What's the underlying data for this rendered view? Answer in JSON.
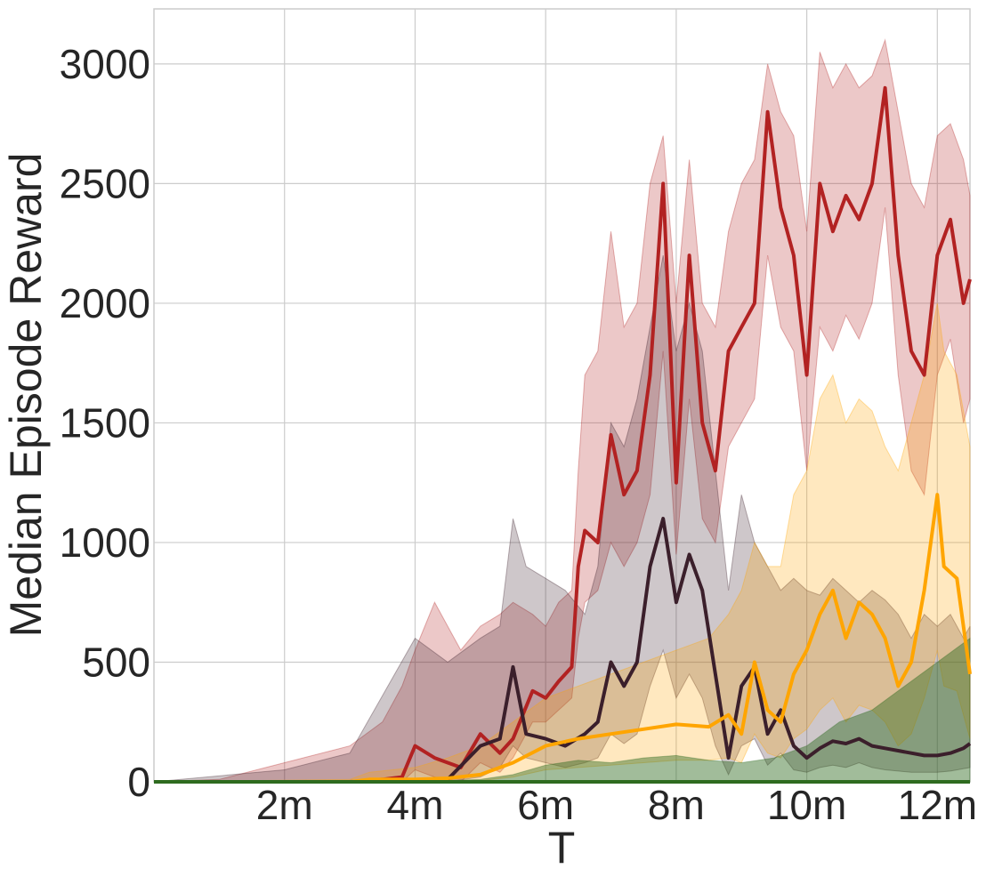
{
  "chart_data": {
    "type": "area",
    "title": "",
    "xlabel": "T",
    "ylabel": "Median Episode Reward",
    "xlim": [
      0,
      12.5
    ],
    "ylim": [
      0,
      3230
    ],
    "grid": true,
    "legend": "none",
    "x_ticks": [
      {
        "value": 2,
        "label": "2m"
      },
      {
        "value": 4,
        "label": "4m"
      },
      {
        "value": 6,
        "label": "6m"
      },
      {
        "value": 8,
        "label": "8m"
      },
      {
        "value": 10,
        "label": "10m"
      },
      {
        "value": 12,
        "label": "12m"
      }
    ],
    "y_ticks": [
      {
        "value": 0,
        "label": "0"
      },
      {
        "value": 500,
        "label": "500"
      },
      {
        "value": 1000,
        "label": "1000"
      },
      {
        "value": 1500,
        "label": "1500"
      },
      {
        "value": 2000,
        "label": "2000"
      },
      {
        "value": 2500,
        "label": "2500"
      },
      {
        "value": 3000,
        "label": "3000"
      }
    ],
    "series": [
      {
        "color": "#b22222",
        "x": [
          0,
          1,
          2,
          3,
          3.5,
          3.8,
          4.0,
          4.3,
          4.5,
          4.7,
          5.0,
          5.3,
          5.5,
          5.8,
          6.0,
          6.2,
          6.4,
          6.5,
          6.6,
          6.8,
          7.0,
          7.2,
          7.4,
          7.6,
          7.8,
          8.0,
          8.2,
          8.4,
          8.6,
          8.8,
          9.0,
          9.2,
          9.4,
          9.6,
          9.8,
          10.0,
          10.2,
          10.4,
          10.6,
          10.8,
          11.0,
          11.2,
          11.4,
          11.6,
          11.8,
          12.0,
          12.2,
          12.4,
          12.5
        ],
        "y": [
          0,
          0,
          0,
          0,
          10,
          20,
          150,
          100,
          80,
          60,
          200,
          120,
          180,
          380,
          350,
          420,
          480,
          900,
          1050,
          1000,
          1450,
          1200,
          1300,
          1700,
          2500,
          1250,
          2200,
          1500,
          1300,
          1800,
          1900,
          2000,
          2800,
          2400,
          2200,
          1700,
          2500,
          2300,
          2450,
          2350,
          2500,
          2900,
          2200,
          1800,
          1700,
          2200,
          2350,
          2000,
          2100
        ],
        "lower": [
          0,
          0,
          0,
          0,
          0,
          0,
          50,
          20,
          10,
          0,
          80,
          40,
          100,
          250,
          250,
          300,
          350,
          600,
          750,
          800,
          1000,
          900,
          1000,
          1200,
          1800,
          950,
          1600,
          1100,
          1000,
          1400,
          1500,
          1600,
          2200,
          1900,
          1800,
          1300,
          1900,
          1800,
          1950,
          1850,
          2000,
          2400,
          1700,
          1300,
          1200,
          1700,
          1850,
          1500,
          1600
        ],
        "upper": [
          0,
          10,
          80,
          150,
          250,
          400,
          550,
          750,
          650,
          550,
          650,
          700,
          750,
          700,
          650,
          750,
          800,
          1300,
          1700,
          1800,
          2300,
          1900,
          2000,
          2500,
          2700,
          2000,
          2600,
          2000,
          1900,
          2300,
          2500,
          2600,
          3000,
          2800,
          2700,
          2300,
          3050,
          2900,
          3000,
          2900,
          2950,
          3100,
          2800,
          2500,
          2400,
          2700,
          2750,
          2600,
          2450
        ]
      },
      {
        "color": "#3b1f2b",
        "x": [
          0,
          2,
          3,
          4,
          4.5,
          5.0,
          5.3,
          5.5,
          5.7,
          6.0,
          6.3,
          6.6,
          6.8,
          7.0,
          7.2,
          7.4,
          7.6,
          7.8,
          8.0,
          8.2,
          8.4,
          8.6,
          8.8,
          9.0,
          9.2,
          9.4,
          9.6,
          9.8,
          10.0,
          10.2,
          10.4,
          10.6,
          10.8,
          11.0,
          11.2,
          11.4,
          11.6,
          11.8,
          12.0,
          12.2,
          12.4,
          12.5
        ],
        "y": [
          0,
          0,
          0,
          0,
          10,
          150,
          180,
          480,
          200,
          180,
          150,
          200,
          250,
          500,
          400,
          500,
          900,
          1100,
          750,
          950,
          800,
          450,
          100,
          400,
          480,
          200,
          300,
          150,
          100,
          140,
          170,
          160,
          180,
          150,
          140,
          130,
          120,
          110,
          110,
          120,
          140,
          160
        ],
        "lower": [
          0,
          0,
          0,
          0,
          0,
          20,
          60,
          150,
          100,
          80,
          60,
          80,
          100,
          200,
          160,
          200,
          400,
          550,
          350,
          450,
          350,
          150,
          30,
          150,
          180,
          70,
          120,
          50,
          40,
          60,
          70,
          60,
          80,
          60,
          50,
          45,
          40,
          40,
          40,
          45,
          55,
          60
        ],
        "upper": [
          0,
          50,
          120,
          600,
          500,
          600,
          650,
          1100,
          900,
          850,
          800,
          700,
          900,
          1500,
          1400,
          1600,
          1900,
          2200,
          1800,
          2000,
          1800,
          1300,
          800,
          1200,
          1000,
          900,
          800,
          850,
          800,
          780,
          850,
          800,
          750,
          800,
          760,
          700,
          600,
          700,
          650,
          700,
          600,
          650
        ]
      },
      {
        "color": "#ffa500",
        "x": [
          0,
          3,
          3.3,
          4,
          4.5,
          5.0,
          5.5,
          6.0,
          6.5,
          7.0,
          7.5,
          8.0,
          8.5,
          8.8,
          9.0,
          9.2,
          9.4,
          9.6,
          9.8,
          10.0,
          10.2,
          10.4,
          10.6,
          10.8,
          11.0,
          11.2,
          11.4,
          11.6,
          11.8,
          12.0,
          12.1,
          12.3,
          12.5
        ],
        "y": [
          0,
          0,
          10,
          10,
          15,
          30,
          80,
          150,
          180,
          200,
          220,
          240,
          230,
          280,
          200,
          500,
          300,
          250,
          450,
          550,
          700,
          800,
          600,
          750,
          700,
          600,
          400,
          500,
          800,
          1200,
          900,
          850,
          450
        ],
        "lower": [
          0,
          0,
          0,
          0,
          0,
          5,
          20,
          50,
          60,
          70,
          80,
          90,
          90,
          100,
          80,
          200,
          120,
          100,
          180,
          220,
          300,
          350,
          250,
          320,
          300,
          250,
          150,
          200,
          350,
          550,
          400,
          380,
          180
        ],
        "upper": [
          0,
          10,
          40,
          60,
          100,
          150,
          250,
          350,
          400,
          450,
          500,
          550,
          600,
          700,
          800,
          1000,
          900,
          900,
          1200,
          1300,
          1600,
          1700,
          1500,
          1600,
          1550,
          1400,
          1300,
          1500,
          1700,
          2000,
          1800,
          1700,
          1400
        ]
      },
      {
        "color": "#2e6b1f",
        "x": [
          0,
          4,
          5,
          5.5,
          6.0,
          6.5,
          7.0,
          7.5,
          8.0,
          8.5,
          9.0,
          9.5,
          10.0,
          10.5,
          11.0,
          11.5,
          12.0,
          12.5
        ],
        "y": [
          0,
          0,
          0,
          0,
          0,
          0,
          0,
          0,
          0,
          0,
          0,
          0,
          0,
          0,
          0,
          0,
          0,
          0
        ],
        "lower": [
          0,
          0,
          0,
          0,
          0,
          0,
          0,
          0,
          0,
          0,
          0,
          0,
          0,
          0,
          0,
          0,
          0,
          0
        ],
        "upper": [
          0,
          0,
          10,
          30,
          70,
          90,
          80,
          100,
          110,
          90,
          80,
          100,
          150,
          250,
          300,
          400,
          500,
          600
        ]
      }
    ]
  }
}
